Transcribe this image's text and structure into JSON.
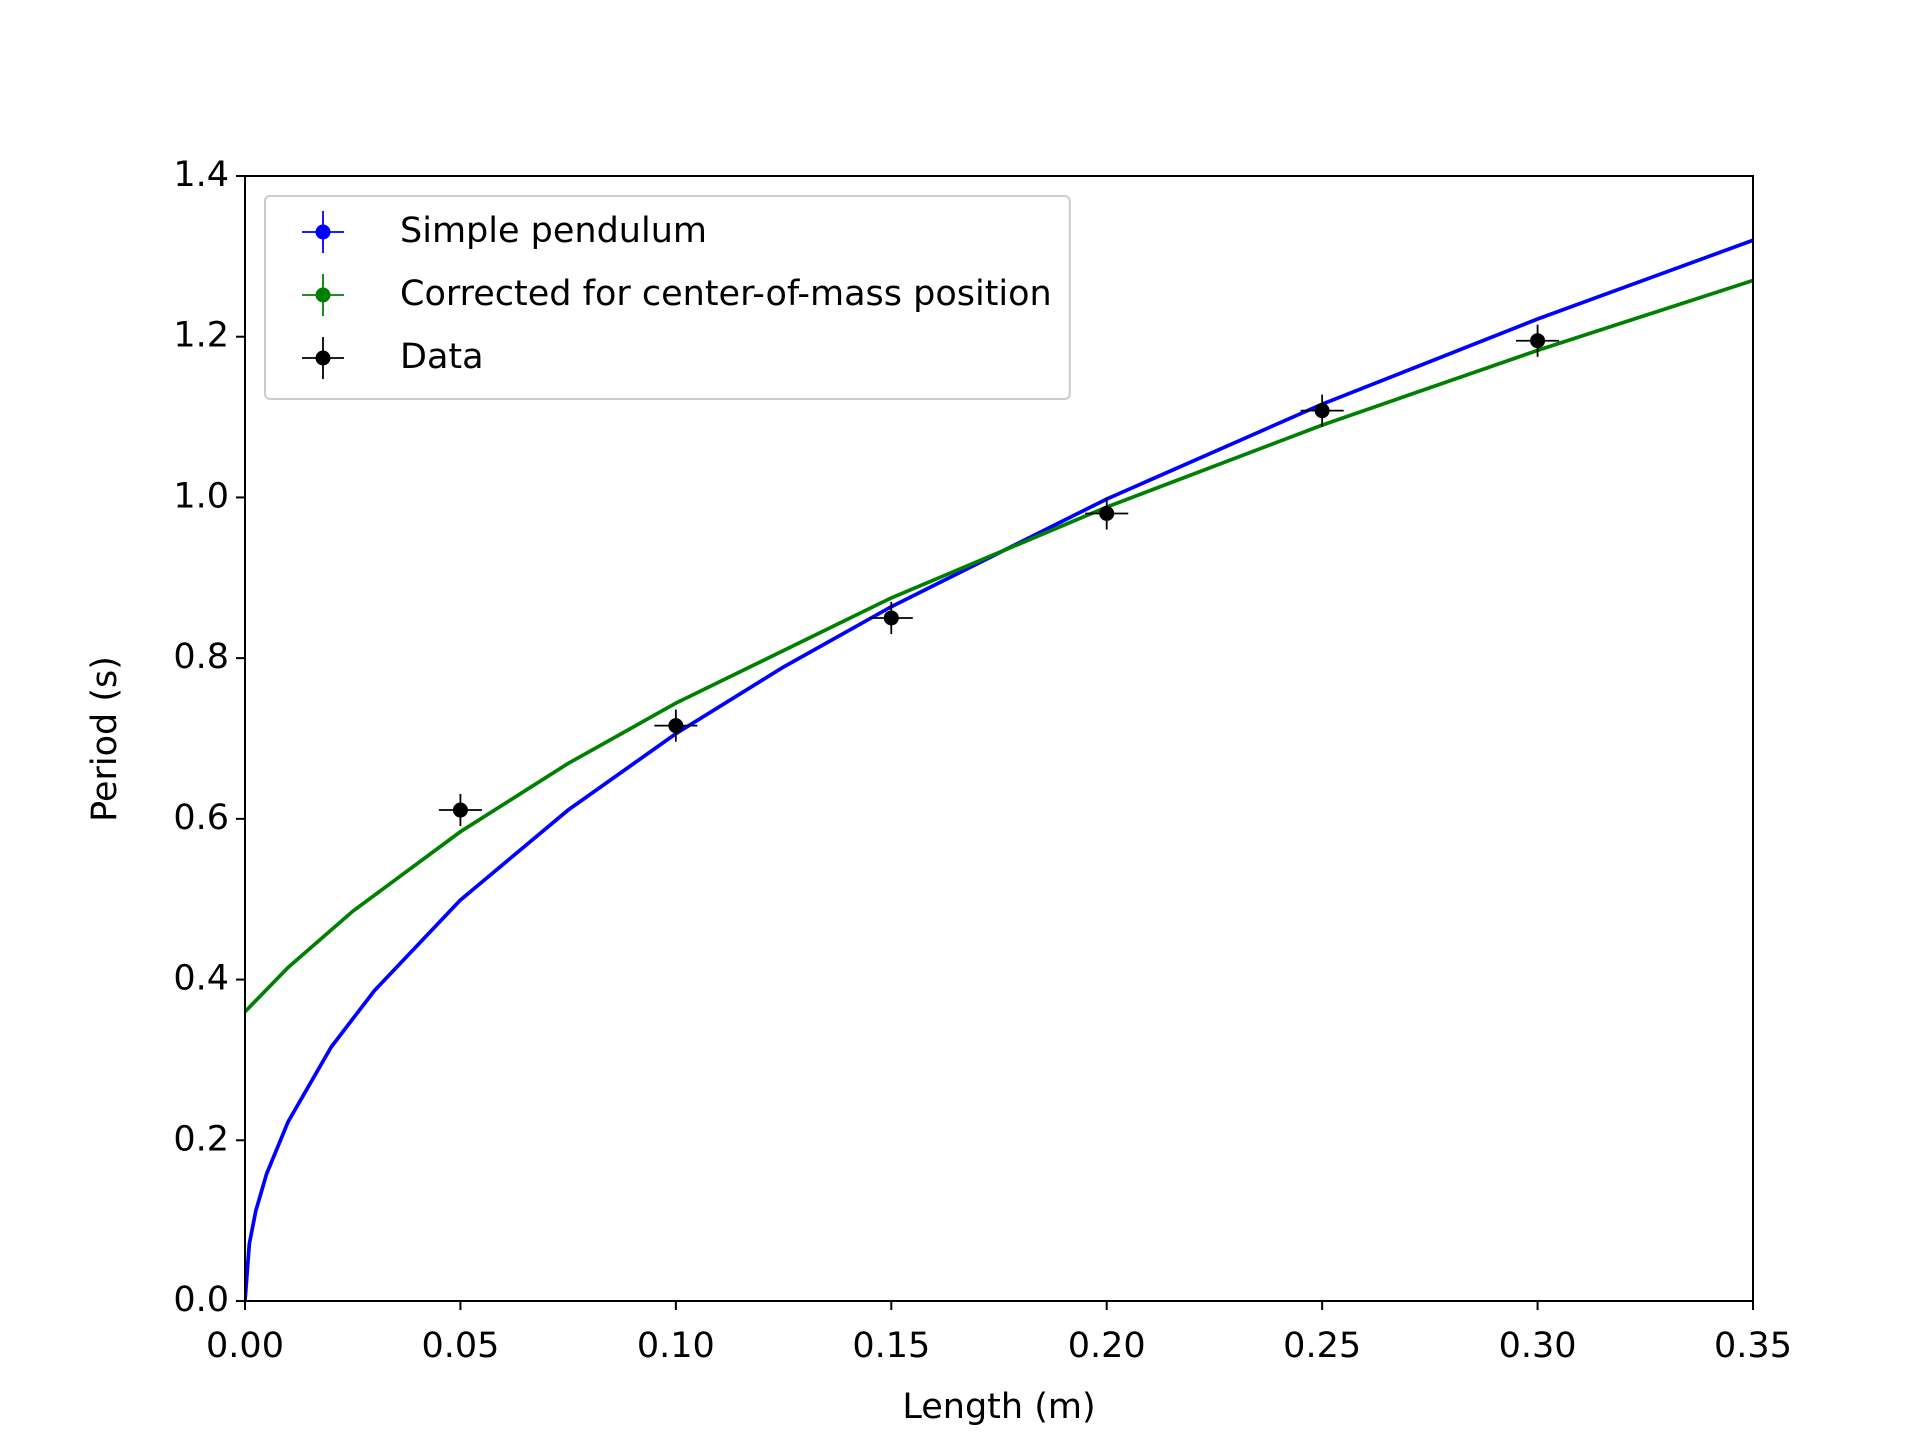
{
  "chart_data": {
    "type": "line",
    "xlabel": "Length (m)",
    "ylabel": "Period (s)",
    "xlim": [
      0,
      0.35
    ],
    "ylim": [
      0,
      1.4
    ],
    "xticks": [
      {
        "value": 0,
        "label": "0.00"
      },
      {
        "value": 0.05,
        "label": "0.05"
      },
      {
        "value": 0.1,
        "label": "0.10"
      },
      {
        "value": 0.15,
        "label": "0.15"
      },
      {
        "value": 0.2,
        "label": "0.20"
      },
      {
        "value": 0.25,
        "label": "0.25"
      },
      {
        "value": 0.3,
        "label": "0.30"
      },
      {
        "value": 0.35,
        "label": "0.35"
      }
    ],
    "yticks": [
      {
        "value": 0,
        "label": "0.0"
      },
      {
        "value": 0.2,
        "label": "0.2"
      },
      {
        "value": 0.4,
        "label": "0.4"
      },
      {
        "value": 0.6,
        "label": "0.6"
      },
      {
        "value": 0.8,
        "label": "0.8"
      },
      {
        "value": 1,
        "label": "1.0"
      },
      {
        "value": 1.2,
        "label": "1.2"
      },
      {
        "value": 1.4,
        "label": "1.4"
      }
    ],
    "legend": "upper left",
    "series": [
      {
        "name": "Simple pendulum",
        "color": "#0000ff",
        "style": "line",
        "x": [
          0,
          0.001,
          0.0025,
          0.005,
          0.01,
          0.02,
          0.03,
          0.05,
          0.075,
          0.1,
          0.125,
          0.15,
          0.2,
          0.25,
          0.3,
          0.35
        ],
        "values": [
          0,
          0.071,
          0.112,
          0.158,
          0.223,
          0.316,
          0.386,
          0.499,
          0.611,
          0.706,
          0.789,
          0.864,
          0.998,
          1.116,
          1.222,
          1.32
        ]
      },
      {
        "name": "Corrected for center-of-mass position",
        "color": "#008000",
        "style": "line",
        "x": [
          0,
          0.01,
          0.025,
          0.05,
          0.075,
          0.1,
          0.15,
          0.2,
          0.25,
          0.3,
          0.35
        ],
        "values": [
          0.36,
          0.415,
          0.485,
          0.584,
          0.669,
          0.744,
          0.875,
          0.988,
          1.09,
          1.183,
          1.27
        ]
      },
      {
        "name": "Data",
        "color": "#000000",
        "style": "errorbar",
        "x": [
          0.05,
          0.1,
          0.15,
          0.2,
          0.25,
          0.3
        ],
        "values": [
          0.611,
          0.716,
          0.85,
          0.98,
          1.108,
          1.195
        ],
        "xerr": [
          0.005,
          0.005,
          0.005,
          0.005,
          0.005,
          0.005
        ],
        "yerr": [
          0.02,
          0.02,
          0.02,
          0.02,
          0.02,
          0.02
        ]
      }
    ]
  }
}
